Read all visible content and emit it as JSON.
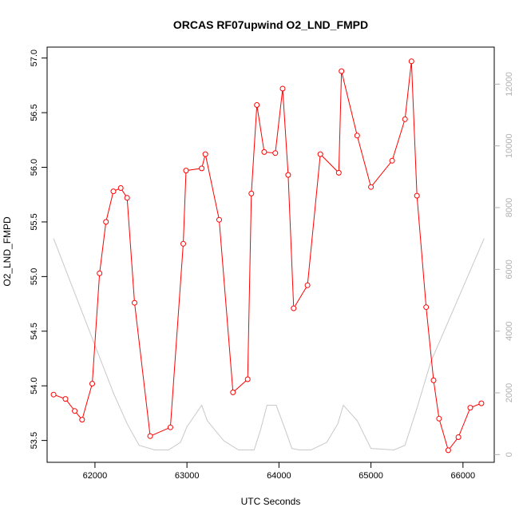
{
  "chart_data": {
    "type": "line",
    "title": "ORCAS RF07upwind O2_LND_FMPD",
    "xlabel": "UTC Seconds",
    "ylabel": "O2_LND_FMPD",
    "xlim": [
      61480,
      66340
    ],
    "ylim": [
      53.3,
      57.1
    ],
    "y2lim": [
      -250,
      13200
    ],
    "x_ticks": [
      62000,
      63000,
      64000,
      65000,
      66000
    ],
    "x_tick_labels": [
      "62000",
      "63000",
      "64000",
      "65000",
      "66000"
    ],
    "y_ticks": [
      53.5,
      54.0,
      54.5,
      55.0,
      55.5,
      56.0,
      56.5,
      57.0
    ],
    "y_tick_labels": [
      "53.5",
      "54.0",
      "54.5",
      "55.0",
      "55.5",
      "56.0",
      "56.5",
      "57.0"
    ],
    "y2_ticks": [
      0,
      2000,
      4000,
      6000,
      8000,
      10000,
      12000
    ],
    "y2_tick_labels": [
      "0",
      "2000",
      "4000",
      "6000",
      "8000",
      "10000",
      "12000"
    ],
    "grid": false,
    "colors": {
      "series": "#ff0000",
      "secondary": "#c8c8c8",
      "right_axis": "#b0b0b0",
      "frame": "#000000"
    },
    "series": [
      {
        "axis": "left",
        "style": "line+open-circles",
        "x": [
          61550,
          61680,
          61780,
          61860,
          61970,
          62050,
          62120,
          62200,
          62280,
          62350,
          62430,
          62600,
          62820,
          62960,
          62990,
          63160,
          63200,
          63350,
          63500,
          63660,
          63700,
          63760,
          63840,
          63960,
          64040,
          64100,
          64160,
          64310,
          64450,
          64650,
          64680,
          64850,
          65000,
          65230,
          65370,
          65440,
          65500,
          65600,
          65680,
          65740,
          65840,
          65950,
          66080,
          66200
        ],
        "values": [
          53.92,
          53.88,
          53.77,
          53.69,
          54.02,
          55.03,
          55.5,
          55.78,
          55.81,
          55.72,
          54.76,
          53.54,
          53.62,
          55.3,
          55.97,
          55.99,
          56.12,
          55.52,
          53.94,
          54.06,
          55.76,
          56.57,
          56.14,
          56.13,
          56.72,
          55.93,
          54.71,
          54.92,
          56.12,
          55.95,
          56.88,
          56.29,
          55.82,
          56.06,
          56.44,
          56.97,
          55.74,
          54.72,
          54.05,
          53.7,
          53.41,
          53.53,
          53.8,
          53.84
        ]
      },
      {
        "axis": "right",
        "style": "line",
        "x": [
          61550,
          62200,
          62350,
          62480,
          62650,
          62800,
          62930,
          63000,
          63080,
          63160,
          63220,
          63400,
          63560,
          63730,
          63800,
          63870,
          63970,
          64070,
          64140,
          64220,
          64350,
          64520,
          64640,
          64700,
          64850,
          65000,
          65250,
          65370,
          65500,
          65650,
          66230
        ],
        "values": [
          7000,
          2000,
          1000,
          300,
          150,
          150,
          400,
          900,
          1250,
          1600,
          1100,
          450,
          150,
          150,
          800,
          1600,
          1600,
          800,
          200,
          150,
          150,
          400,
          1000,
          1600,
          1100,
          200,
          150,
          300,
          1500,
          3000,
          7000
        ]
      }
    ]
  }
}
